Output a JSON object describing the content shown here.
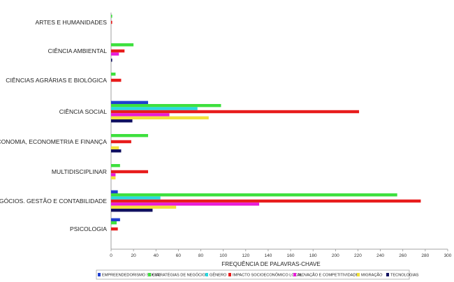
{
  "chart_data": {
    "type": "bar",
    "orientation": "horizontal",
    "title": "",
    "xlabel": "FREQUÊNCIA DE PALAVRAS-CHAVE",
    "ylabel": "",
    "xlim": [
      0,
      300
    ],
    "xticks": [
      0,
      20,
      40,
      60,
      80,
      100,
      120,
      140,
      160,
      180,
      200,
      220,
      240,
      260,
      280,
      300
    ],
    "grid": false,
    "legend_position": "bottom",
    "categories": [
      "ARTES E HUMANIDADES",
      "CIÊNCIA AMBIENTAL",
      "CIÊNCIAS AGRÁRIAS E BIOLÓGICA",
      "CIÊNCIA SOCIAL",
      "ECONOMIA, ECONOMETRIA E FINANÇA",
      "MULTIDISCIPLINAR",
      "NEGÓCIOS. GESTÃO E CONTABILIDADE",
      "PSICOLOGIA"
    ],
    "series": [
      {
        "name": "EMPREENDEDORISMO SOCIAL",
        "color": "#1f3fd0",
        "values": [
          0,
          0,
          0,
          33,
          0,
          0,
          6,
          8
        ]
      },
      {
        "name": "ESTRATÉGIAS DE NEGÓCIOS",
        "color": "#3ee03e",
        "values": [
          1,
          20,
          4,
          98,
          33,
          8,
          255,
          5
        ]
      },
      {
        "name": "GÊNERO",
        "color": "#2ad8e0",
        "values": [
          0,
          0,
          0,
          77,
          0,
          0,
          44,
          0
        ]
      },
      {
        "name": "IMPACTO SOCIOECONÔMICO LOCAL",
        "color": "#e81c1c",
        "values": [
          1,
          12,
          9,
          221,
          18,
          33,
          276,
          6
        ]
      },
      {
        "name": "INOVAÇÃO E COMPETITIVIDADE",
        "color": "#e81cd8",
        "values": [
          0,
          7,
          0,
          52,
          0,
          4,
          132,
          0
        ]
      },
      {
        "name": "MIGRAÇÃO",
        "color": "#f2e23a",
        "values": [
          0,
          0,
          0,
          87,
          7,
          4,
          58,
          0
        ]
      },
      {
        "name": "TECNOLOGIAS",
        "color": "#101060",
        "values": [
          0,
          1,
          0,
          19,
          9,
          0,
          37,
          0
        ]
      }
    ]
  }
}
